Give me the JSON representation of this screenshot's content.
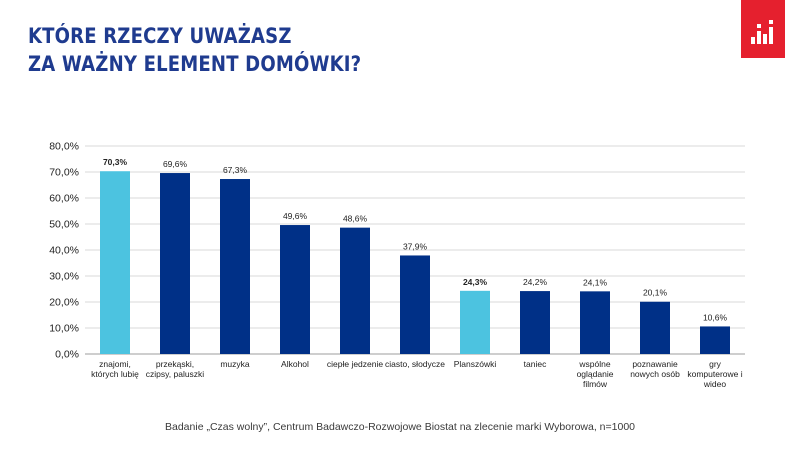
{
  "header": {
    "title_lines": [
      "KTÓRE RZECZY UWAŻASZ",
      "ZA WAŻNY ELEMENT DOMÓWKI?"
    ],
    "logo_icon": "biostat-bars-logo-icon"
  },
  "colors": {
    "title": "#1f3b8f",
    "bar_default": "#003087",
    "bar_highlight": "#4cc3e0",
    "logo_bg": "#e5202e",
    "grid": "#d9d9d9"
  },
  "chart_data": {
    "type": "bar",
    "categories": [
      [
        "znajomi,",
        "których lubię"
      ],
      [
        "przekąski,",
        "czipsy, paluszki"
      ],
      [
        "muzyka"
      ],
      [
        "Alkohol"
      ],
      [
        "ciepłe jedzenie"
      ],
      [
        "ciasto, słodycze"
      ],
      [
        "Planszówki"
      ],
      [
        "taniec"
      ],
      [
        "wspólne",
        "oglądanie",
        "filmów"
      ],
      [
        "poznawanie",
        "nowych osób"
      ],
      [
        "gry",
        "komputerowe i",
        "wideo"
      ]
    ],
    "values": [
      70.3,
      69.6,
      67.3,
      49.6,
      48.6,
      37.9,
      24.3,
      24.2,
      24.1,
      20.1,
      10.6
    ],
    "data_labels": [
      "70,3%",
      "69,6%",
      "67,3%",
      "49,6%",
      "48,6%",
      "37,9%",
      "24,3%",
      "24,2%",
      "24,1%",
      "20,1%",
      "10,6%"
    ],
    "highlighted": [
      0,
      6
    ],
    "y_ticks": [
      0,
      10,
      20,
      30,
      40,
      50,
      60,
      70,
      80
    ],
    "y_tick_labels": [
      "0,0%",
      "10,0%",
      "20,0%",
      "30,0%",
      "40,0%",
      "50,0%",
      "60,0%",
      "70,0%",
      "80,0%"
    ],
    "ylim": [
      0,
      80
    ],
    "grid": true,
    "legend": "none",
    "title": "",
    "xlabel": "",
    "ylabel": ""
  },
  "footnote": "Badanie „Czas wolny”, Centrum Badawczo-Rozwojowe Biostat na zlecenie marki Wyborowa, n=1000"
}
